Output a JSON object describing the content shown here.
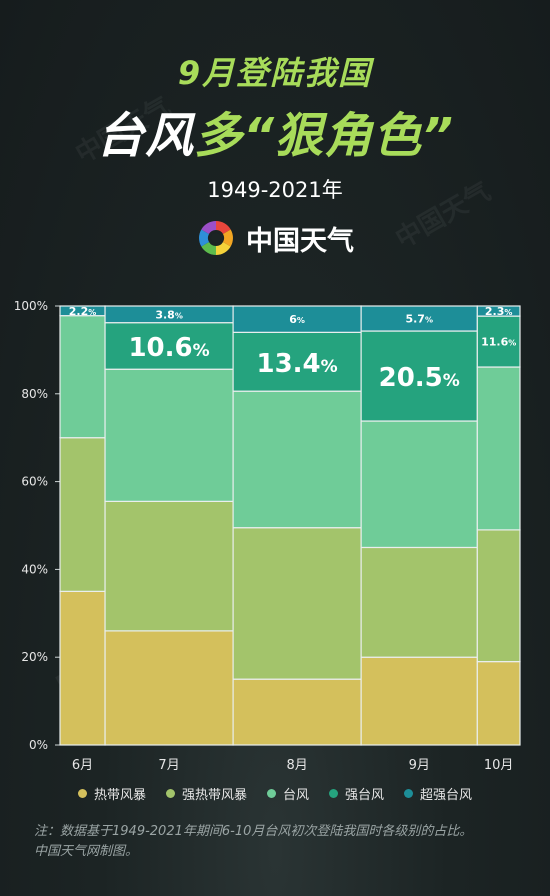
{
  "header": {
    "title_line1": "9月登陆我国",
    "title_line2_part1": "台风",
    "title_line2_part2": "多“狠角色”",
    "subtitle": "1949-2021年",
    "brand_name": "中国天气",
    "watermark": "中国天气"
  },
  "colors": {
    "tropical_storm": "#d4c05c",
    "severe_tropical_storm": "#a3c46b",
    "typhoon": "#6fcc98",
    "severe_typhoon": "#25a37e",
    "super_typhoon": "#1d8e98",
    "label_highlight": "#ffffff"
  },
  "chart_data": {
    "type": "bar",
    "subtype": "mekko-stacked-100",
    "categories": [
      "6月",
      "7月",
      "8月",
      "9月",
      "10月"
    ],
    "column_widths_relative": [
      0.095,
      0.27,
      0.27,
      0.245,
      0.09
    ],
    "series": [
      {
        "name": "热带风暴",
        "values": [
          35.0,
          26.0,
          15.0,
          20.0,
          19.0
        ]
      },
      {
        "name": "强热带风暴",
        "values": [
          35.0,
          29.5,
          34.5,
          25.0,
          30.0
        ]
      },
      {
        "name": "台风",
        "values": [
          27.8,
          30.1,
          31.1,
          28.8,
          37.1
        ]
      },
      {
        "name": "强台风",
        "values": [
          0.0,
          10.6,
          13.4,
          20.5,
          11.6
        ]
      },
      {
        "name": "超强台风",
        "values": [
          2.2,
          3.8,
          6.0,
          5.7,
          2.3
        ]
      }
    ],
    "value_labels": [
      {
        "category": "6月",
        "series": "超强台风",
        "text": "2.2%"
      },
      {
        "category": "7月",
        "series": "超强台风",
        "text": "3.8%"
      },
      {
        "category": "7月",
        "series": "强台风",
        "text": "10.6%"
      },
      {
        "category": "8月",
        "series": "超强台风",
        "text": "6%"
      },
      {
        "category": "8月",
        "series": "强台风",
        "text": "13.4%"
      },
      {
        "category": "9月",
        "series": "超强台风",
        "text": "5.7%"
      },
      {
        "category": "9月",
        "series": "强台风",
        "text": "20.5%"
      },
      {
        "category": "10月",
        "series": "超强台风",
        "text": "2.3%"
      },
      {
        "category": "10月",
        "series": "强台风",
        "text": "11.6%"
      }
    ],
    "y_ticks": [
      "0%",
      "20%",
      "40%",
      "60%",
      "80%",
      "100%"
    ],
    "ylim": [
      0,
      100
    ],
    "grid": false,
    "legend_position": "bottom"
  },
  "footnote": {
    "line1": "注：数据基于1949-2021年期间6-10月台风初次登陆我国时各级别的占比。",
    "line2": "中国天气网制图。"
  }
}
